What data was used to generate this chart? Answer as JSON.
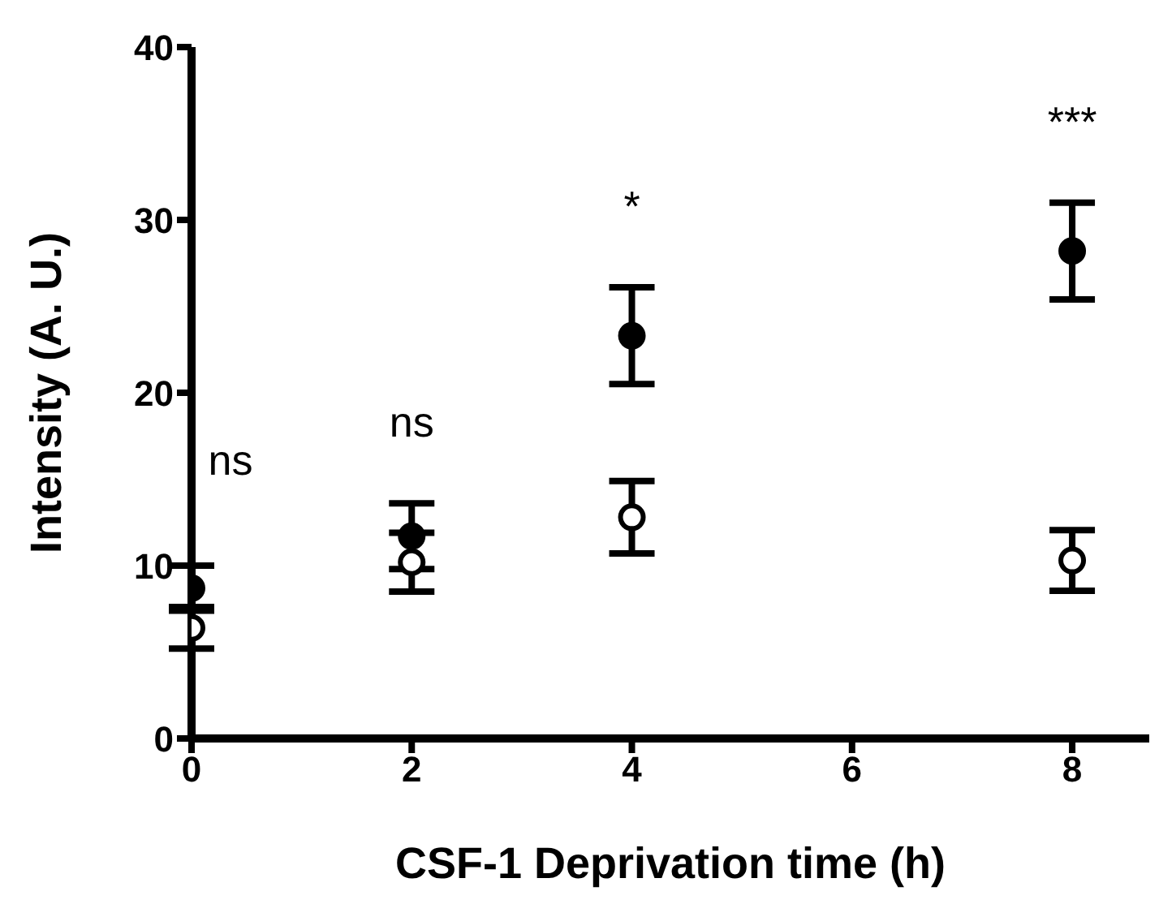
{
  "chart_data": {
    "type": "scatter",
    "xlabel": "CSF-1 Deprivation time (h)",
    "ylabel": "Intensity (A. U.)",
    "x": [
      0,
      2,
      4,
      8
    ],
    "series": [
      {
        "color": "#000000",
        "values": [
          8.7,
          11.7,
          23.3,
          28.2
        ],
        "errors": [
          1.3,
          1.9,
          2.8,
          2.8
        ]
      },
      {
        "color": "#ffffff",
        "values": [
          6.4,
          10.2,
          12.8,
          10.3
        ],
        "errors": [
          1.2,
          1.7,
          2.1,
          1.75
        ]
      }
    ],
    "xlim": [
      0,
      8.7
    ],
    "xticks": [
      0,
      2,
      4,
      6,
      8
    ],
    "ylim": [
      0,
      40
    ],
    "yticks": [
      0,
      10,
      20,
      30,
      40
    ],
    "marker": "circle",
    "grid": false,
    "legend": false,
    "annotations": [
      "ns",
      "ns",
      "*",
      "***"
    ]
  }
}
